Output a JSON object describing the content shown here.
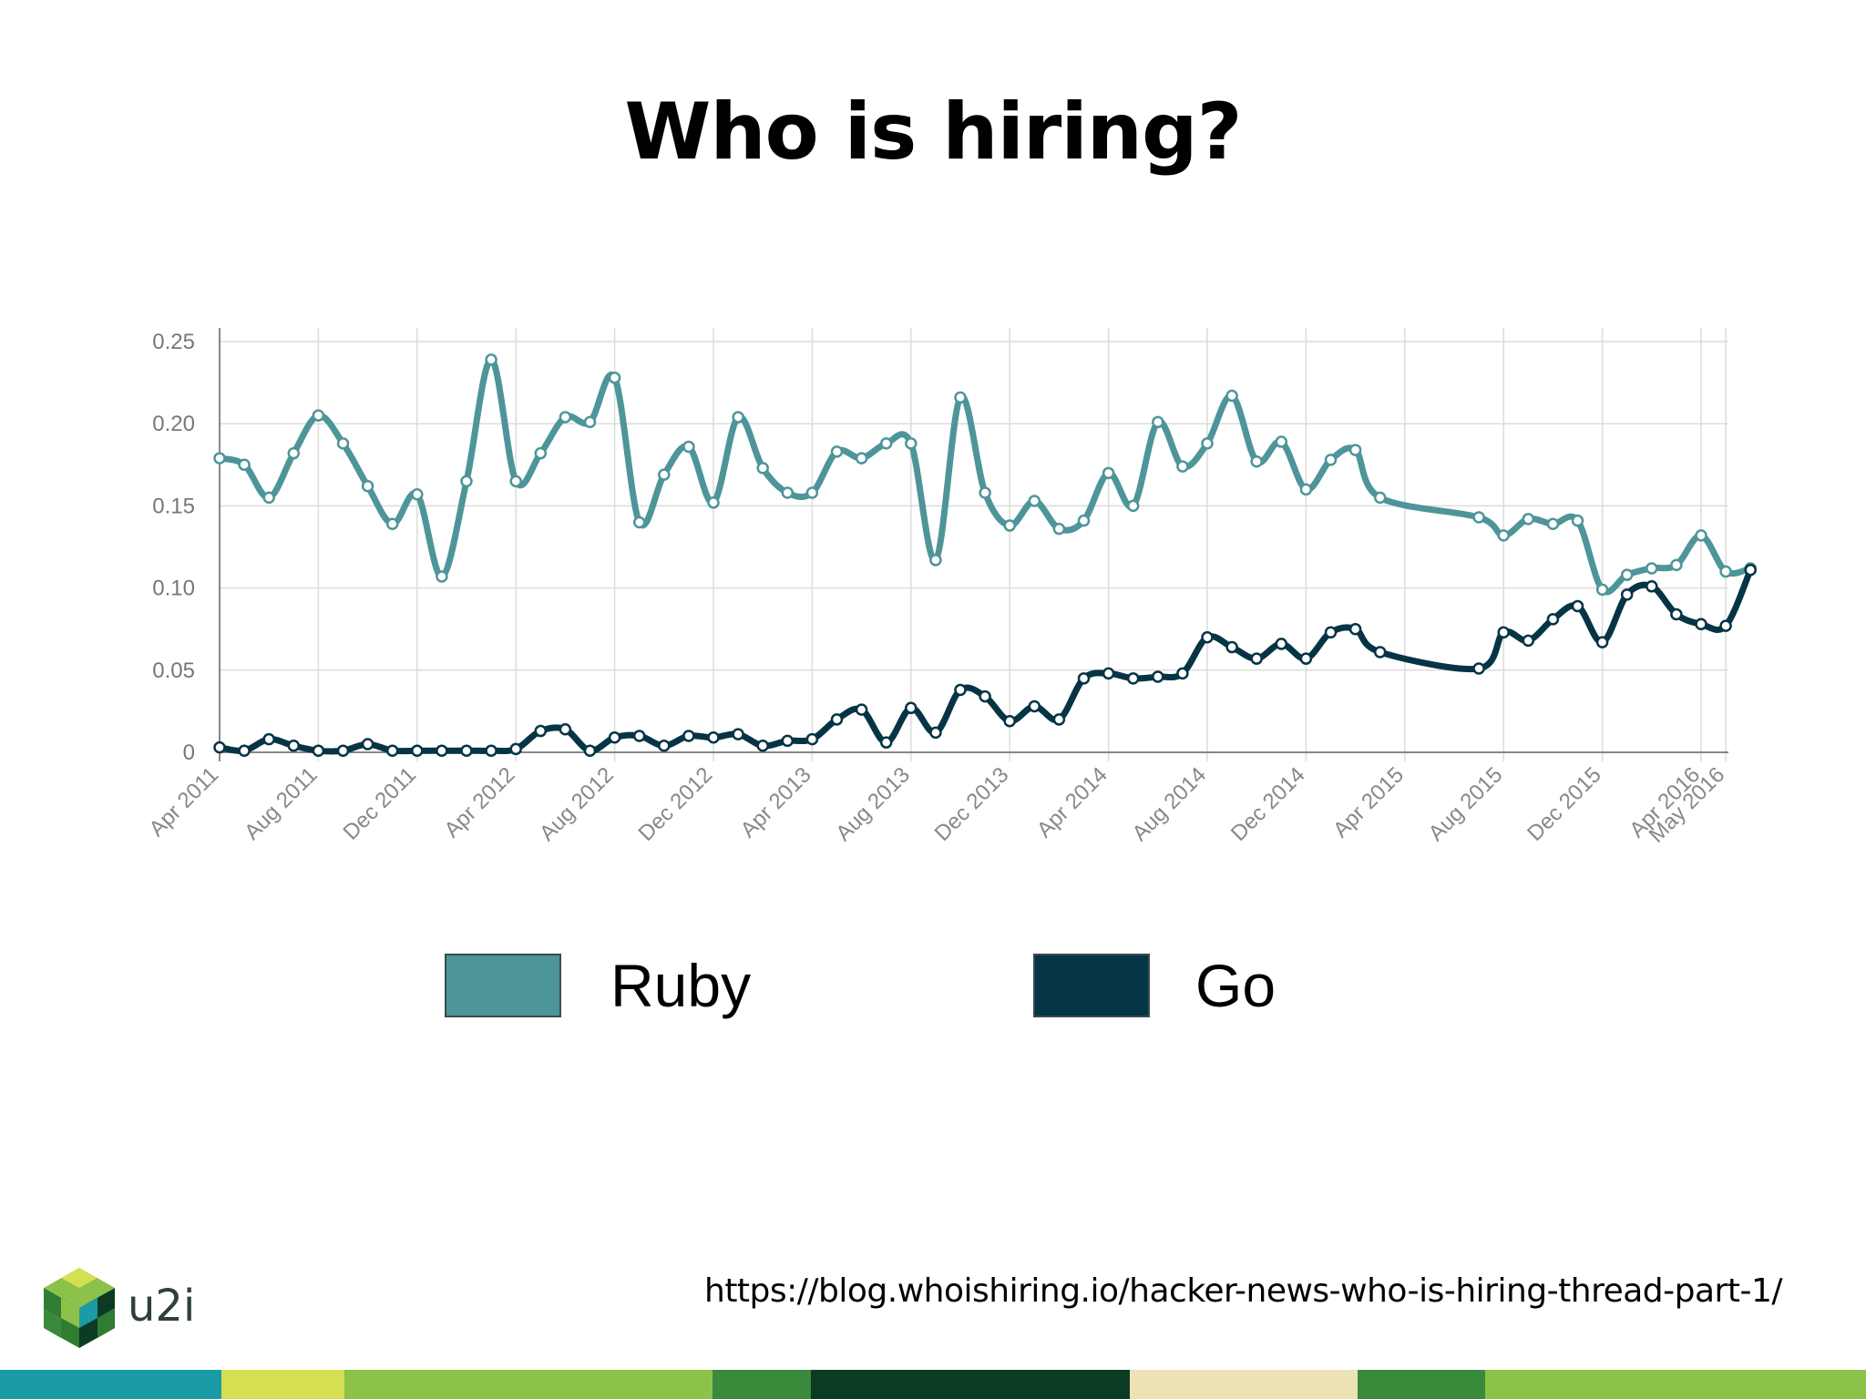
{
  "title": "Who is hiring?",
  "source_url": "https://blog.whoishiring.io/hacker-news-who-is-hiring-thread-part-1/",
  "logo": {
    "text": "u2i",
    "icon": "u2i-cube-logo"
  },
  "colors": {
    "ruby": "#4e9599",
    "go": "#053445",
    "grid": "#dcdcdc",
    "axis": "#888888"
  },
  "footer_colors": [
    "#1a9ba6",
    "#d4df52",
    "#8cc24a",
    "#3a8a3c",
    "#0b3b22",
    "#ece2b4",
    "#3a8a3c",
    "#8cc24a"
  ],
  "chart_data": {
    "type": "line",
    "title": "",
    "xlabel": "",
    "ylabel": "",
    "ylim": [
      0,
      0.25
    ],
    "yticks": [
      "0",
      "0.05",
      "0.10",
      "0.15",
      "0.20",
      "0.25"
    ],
    "xticks": [
      "Apr 2011",
      "Aug 2011",
      "Dec 2011",
      "Apr 2012",
      "Aug 2012",
      "Dec 2012",
      "Apr 2013",
      "Aug 2013",
      "Dec 2013",
      "Apr 2014",
      "Aug 2014",
      "Dec 2014",
      "Apr 2015",
      "Aug 2015",
      "Dec 2015",
      "Apr 2016",
      "May 2016"
    ],
    "grid": true,
    "legend_position": "bottom",
    "series": [
      {
        "name": "Ruby",
        "color": "#4e9599",
        "points": [
          [
            "2011-04",
            0.179
          ],
          [
            "2011-05",
            0.175
          ],
          [
            "2011-06",
            0.155
          ],
          [
            "2011-07",
            0.182
          ],
          [
            "2011-08",
            0.205
          ],
          [
            "2011-09",
            0.188
          ],
          [
            "2011-10",
            0.162
          ],
          [
            "2011-11",
            0.139
          ],
          [
            "2011-12",
            0.157
          ],
          [
            "2012-01",
            0.107
          ],
          [
            "2012-02",
            0.165
          ],
          [
            "2012-03",
            0.239
          ],
          [
            "2012-04",
            0.165
          ],
          [
            "2012-05",
            0.182
          ],
          [
            "2012-06",
            0.204
          ],
          [
            "2012-07",
            0.201
          ],
          [
            "2012-08",
            0.228
          ],
          [
            "2012-09",
            0.14
          ],
          [
            "2012-10",
            0.169
          ],
          [
            "2012-11",
            0.186
          ],
          [
            "2012-12",
            0.152
          ],
          [
            "2013-01",
            0.204
          ],
          [
            "2013-02",
            0.173
          ],
          [
            "2013-03",
            0.158
          ],
          [
            "2013-04",
            0.158
          ],
          [
            "2013-05",
            0.183
          ],
          [
            "2013-06",
            0.179
          ],
          [
            "2013-07",
            0.188
          ],
          [
            "2013-08",
            0.188
          ],
          [
            "2013-09",
            0.117
          ],
          [
            "2013-10",
            0.216
          ],
          [
            "2013-11",
            0.158
          ],
          [
            "2013-12",
            0.138
          ],
          [
            "2014-01",
            0.153
          ],
          [
            "2014-02",
            0.136
          ],
          [
            "2014-03",
            0.141
          ],
          [
            "2014-04",
            0.17
          ],
          [
            "2014-05",
            0.15
          ],
          [
            "2014-06",
            0.201
          ],
          [
            "2014-07",
            0.174
          ],
          [
            "2014-08",
            0.188
          ],
          [
            "2014-09",
            0.217
          ],
          [
            "2014-10",
            0.177
          ],
          [
            "2014-11",
            0.189
          ],
          [
            "2014-12",
            0.16
          ],
          [
            "2015-01",
            0.178
          ],
          [
            "2015-02",
            0.184
          ],
          [
            "2015-03",
            0.155
          ],
          [
            "2015-07",
            0.143
          ],
          [
            "2015-08",
            0.132
          ],
          [
            "2015-09",
            0.142
          ],
          [
            "2015-10",
            0.139
          ],
          [
            "2015-11",
            0.141
          ],
          [
            "2015-12",
            0.099
          ],
          [
            "2016-01",
            0.108
          ],
          [
            "2016-02",
            0.112
          ],
          [
            "2016-03",
            0.114
          ],
          [
            "2016-04",
            0.132
          ],
          [
            "2016-05",
            0.11
          ],
          [
            "2016-06",
            0.112
          ]
        ]
      },
      {
        "name": "Go",
        "color": "#053445",
        "points": [
          [
            "2011-04",
            0.003
          ],
          [
            "2011-05",
            0.001
          ],
          [
            "2011-06",
            0.008
          ],
          [
            "2011-07",
            0.004
          ],
          [
            "2011-08",
            0.001
          ],
          [
            "2011-09",
            0.001
          ],
          [
            "2011-10",
            0.005
          ],
          [
            "2011-11",
            0.001
          ],
          [
            "2011-12",
            0.001
          ],
          [
            "2012-01",
            0.001
          ],
          [
            "2012-02",
            0.001
          ],
          [
            "2012-03",
            0.001
          ],
          [
            "2012-04",
            0.002
          ],
          [
            "2012-05",
            0.013
          ],
          [
            "2012-06",
            0.014
          ],
          [
            "2012-07",
            0.001
          ],
          [
            "2012-08",
            0.009
          ],
          [
            "2012-09",
            0.01
          ],
          [
            "2012-10",
            0.004
          ],
          [
            "2012-11",
            0.01
          ],
          [
            "2012-12",
            0.009
          ],
          [
            "2013-01",
            0.011
          ],
          [
            "2013-02",
            0.004
          ],
          [
            "2013-03",
            0.007
          ],
          [
            "2013-04",
            0.008
          ],
          [
            "2013-05",
            0.02
          ],
          [
            "2013-06",
            0.026
          ],
          [
            "2013-07",
            0.006
          ],
          [
            "2013-08",
            0.027
          ],
          [
            "2013-09",
            0.012
          ],
          [
            "2013-10",
            0.038
          ],
          [
            "2013-11",
            0.034
          ],
          [
            "2013-12",
            0.019
          ],
          [
            "2014-01",
            0.028
          ],
          [
            "2014-02",
            0.02
          ],
          [
            "2014-03",
            0.045
          ],
          [
            "2014-04",
            0.048
          ],
          [
            "2014-05",
            0.045
          ],
          [
            "2014-06",
            0.046
          ],
          [
            "2014-07",
            0.048
          ],
          [
            "2014-08",
            0.07
          ],
          [
            "2014-09",
            0.064
          ],
          [
            "2014-10",
            0.057
          ],
          [
            "2014-11",
            0.066
          ],
          [
            "2014-12",
            0.057
          ],
          [
            "2015-01",
            0.073
          ],
          [
            "2015-02",
            0.075
          ],
          [
            "2015-03",
            0.061
          ],
          [
            "2015-07",
            0.051
          ],
          [
            "2015-08",
            0.073
          ],
          [
            "2015-09",
            0.068
          ],
          [
            "2015-10",
            0.081
          ],
          [
            "2015-11",
            0.089
          ],
          [
            "2015-12",
            0.067
          ],
          [
            "2016-01",
            0.096
          ],
          [
            "2016-02",
            0.101
          ],
          [
            "2016-03",
            0.084
          ],
          [
            "2016-04",
            0.078
          ],
          [
            "2016-05",
            0.077
          ],
          [
            "2016-06",
            0.111
          ]
        ]
      }
    ]
  }
}
